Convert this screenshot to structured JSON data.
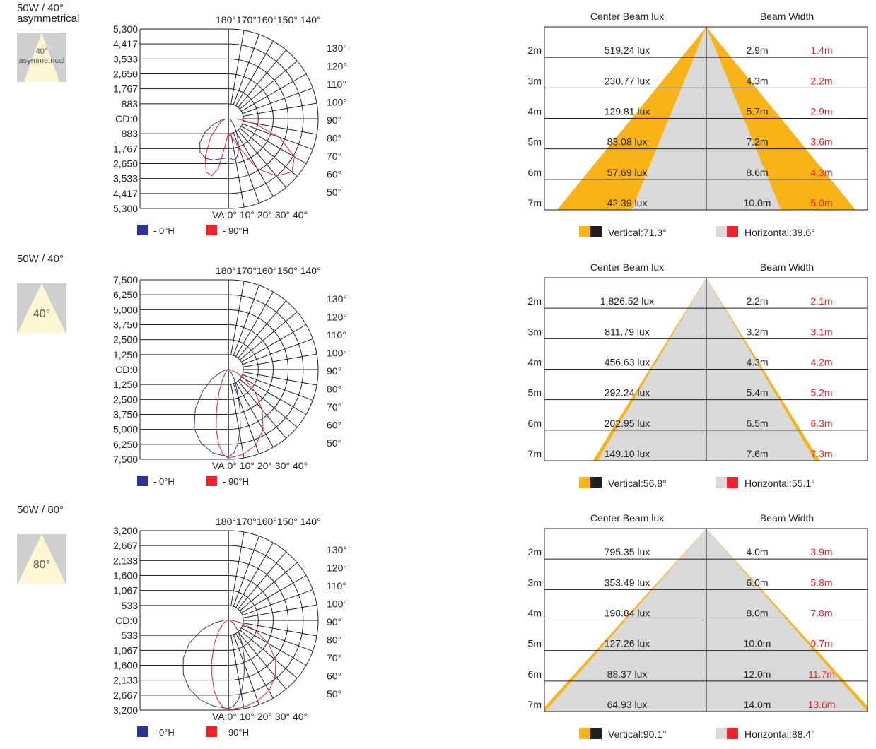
{
  "sections": [
    {
      "title": "50W / 40° asymmetrical",
      "thumb_label": "40° asymmetrical",
      "chart_data": {
        "type": "polar",
        "cd_labels": [
          "5,300",
          "4,417",
          "3,533",
          "2,650",
          "1,767",
          "883",
          "CD:0",
          "883",
          "1,767",
          "2,650",
          "3,533",
          "4,417",
          "5,300"
        ],
        "top_angle_label": "180°170°160°150° 140°",
        "right_angle_labels": [
          "130°",
          "120°",
          "110°",
          "100°",
          "90°",
          "80°",
          "70°",
          "60°",
          "50°"
        ],
        "bottom_angle_label": "VA:0° 10° 20° 30° 40°",
        "legend": [
          "- 0°H",
          "- 90°H"
        ],
        "series": [
          {
            "name": "0°H",
            "color": "#2b3593",
            "candela": [
              2300,
              2400,
              2600,
              2700,
              2600,
              2200,
              1600,
              900,
              400,
              150
            ]
          },
          {
            "name": "90°H",
            "color": "#ee2229",
            "candela": [
              900,
              1100,
              1800,
              3400,
              4400,
              4900,
              4500,
              3200,
              1500,
              500
            ]
          }
        ]
      },
      "beam_data": {
        "type": "beam-cone",
        "header_left": "Center Beam lux",
        "header_right": "Beam Width",
        "rows": [
          {
            "distance": "2m",
            "lux": "519.24 lux",
            "w1": "2.9m",
            "w2": "1.4m"
          },
          {
            "distance": "3m",
            "lux": "230.77 lux",
            "w1": "4.3m",
            "w2": "2.2m"
          },
          {
            "distance": "4m",
            "lux": "129.81 lux",
            "w1": "5.7m",
            "w2": "2.9m"
          },
          {
            "distance": "5m",
            "lux": "83.08 lux",
            "w1": "7.2m",
            "w2": "3.6m"
          },
          {
            "distance": "6m",
            "lux": "57.69 lux",
            "w1": "8.6m",
            "w2": "4.3m"
          },
          {
            "distance": "7m",
            "lux": "42.39 lux",
            "w1": "10.0m",
            "w2": "5.0m"
          }
        ],
        "vertical_label": "Vertical:71.3°",
        "horizontal_label": "Horizontal:39.6°",
        "vertical_deg": 71.3,
        "horizontal_deg": 39.6
      }
    },
    {
      "title": "50W / 40°",
      "thumb_label": "40°",
      "chart_data": {
        "type": "polar",
        "cd_labels": [
          "7,500",
          "6,250",
          "5,000",
          "3,750",
          "2,500",
          "1,250",
          "CD:0",
          "1,250",
          "2,500",
          "3,750",
          "5,000",
          "6,250",
          "7,500"
        ],
        "top_angle_label": "180°170°160°150° 140°",
        "right_angle_labels": [
          "130°",
          "120°",
          "110°",
          "100°",
          "90°",
          "80°",
          "70°",
          "60°",
          "50°"
        ],
        "bottom_angle_label": "VA:0° 10° 20° 30° 40°",
        "legend": [
          "- 0°H",
          "- 90°H"
        ],
        "series": [
          {
            "name": "0°H",
            "color": "#2b3593",
            "candela": [
              7300,
              7100,
              6600,
              5700,
              4300,
              2800,
              1600,
              700,
              250,
              60
            ]
          },
          {
            "name": "90°H",
            "color": "#ee2229",
            "candela": [
              7400,
              7200,
              6700,
              5800,
              4400,
              2900,
              1600,
              700,
              250,
              60
            ]
          }
        ]
      },
      "beam_data": {
        "type": "beam-cone",
        "header_left": "Center Beam lux",
        "header_right": "Beam Width",
        "rows": [
          {
            "distance": "2m",
            "lux": "1,826.52 lux",
            "w1": "2.2m",
            "w2": "2.1m"
          },
          {
            "distance": "3m",
            "lux": "811.79 lux",
            "w1": "3.2m",
            "w2": "3.1m"
          },
          {
            "distance": "4m",
            "lux": "456.63 lux",
            "w1": "4.3m",
            "w2": "4.2m"
          },
          {
            "distance": "5m",
            "lux": "292.24 lux",
            "w1": "5.4m",
            "w2": "5.2m"
          },
          {
            "distance": "6m",
            "lux": "202.95 lux",
            "w1": "6.5m",
            "w2": "6.3m"
          },
          {
            "distance": "7m",
            "lux": "149.10 lux",
            "w1": "7.6m",
            "w2": "7.3m"
          }
        ],
        "vertical_label": "Vertical:56.8°",
        "horizontal_label": "Horizontal:55.1°",
        "vertical_deg": 56.8,
        "horizontal_deg": 55.1
      }
    },
    {
      "title": "50W / 80°",
      "thumb_label": "80°",
      "chart_data": {
        "type": "polar",
        "cd_labels": [
          "3,200",
          "2,667",
          "2,133",
          "1,600",
          "1,067",
          "533",
          "CD:0",
          "533",
          "1,067",
          "1,600",
          "2,133",
          "2,667",
          "3,200"
        ],
        "top_angle_label": "180°170°160°150° 140°",
        "right_angle_labels": [
          "130°",
          "120°",
          "110°",
          "100°",
          "90°",
          "80°",
          "70°",
          "60°",
          "50°"
        ],
        "bottom_angle_label": "VA:0° 10° 20° 30° 40°",
        "legend": [
          "- 0°H",
          "- 90°H"
        ],
        "series": [
          {
            "name": "0°H",
            "color": "#2b3593",
            "candela": [
              3150,
              3100,
              3000,
              2800,
              2500,
              2100,
              1600,
              1000,
              500,
              150
            ]
          },
          {
            "name": "90°H",
            "color": "#ee2229",
            "candela": [
              3180,
              3150,
              3050,
              2900,
              2600,
              2200,
              1650,
              1000,
              450,
              120
            ]
          }
        ]
      },
      "beam_data": {
        "type": "beam-cone",
        "header_left": "Center Beam lux",
        "header_right": "Beam Width",
        "rows": [
          {
            "distance": "2m",
            "lux": "795.35 lux",
            "w1": "4.0m",
            "w2": "3.9m"
          },
          {
            "distance": "3m",
            "lux": "353.49 lux",
            "w1": "6.0m",
            "w2": "5.8m"
          },
          {
            "distance": "4m",
            "lux": "198.84 lux",
            "w1": "8.0m",
            "w2": "7.8m"
          },
          {
            "distance": "5m",
            "lux": "127.26 lux",
            "w1": "10.0m",
            "w2": "9.7m"
          },
          {
            "distance": "6m",
            "lux": "88.37 lux",
            "w1": "12.0m",
            "w2": "11.7m"
          },
          {
            "distance": "7m",
            "lux": "64.93 lux",
            "w1": "14.0m",
            "w2": "13.6m"
          }
        ],
        "vertical_label": "Vertical:90.1°",
        "horizontal_label": "Horizontal:88.4°",
        "vertical_deg": 90.1,
        "horizontal_deg": 88.4
      }
    }
  ],
  "colors": {
    "amber": "#f8b416",
    "grey": "#d9d9d9",
    "black": "#231f20",
    "red": "#ee2229",
    "blue": "#2b3593",
    "thumb_bg": "#cfcfcf",
    "thumb_beam": "#fdf6d2"
  }
}
